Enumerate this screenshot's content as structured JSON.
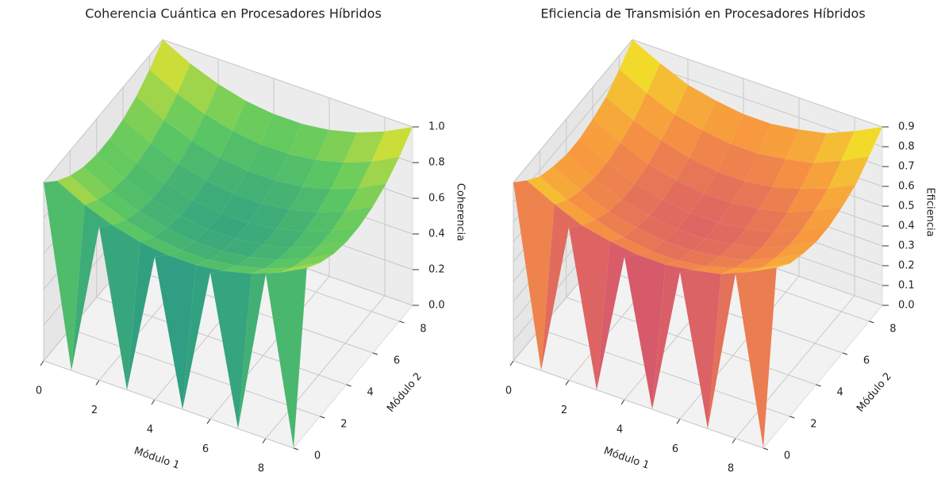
{
  "chart_data": [
    {
      "type": "surface",
      "title": "Coherencia Cuántica en Procesadores Híbridos",
      "x_label": "Módulo 1",
      "y_label": "Módulo 2",
      "z_label": "Coherencia",
      "colormap": "viridis",
      "x": [
        0,
        1,
        2,
        3,
        4,
        5,
        6,
        7,
        8,
        9
      ],
      "y": [
        0,
        1,
        2,
        3,
        4,
        5,
        6,
        7,
        8,
        9
      ],
      "z": [
        [
          1.0,
          0,
          0.86,
          0,
          0.8,
          0,
          0.82,
          0,
          0.92,
          0
        ],
        [
          0.92,
          0.84,
          0.78,
          0.74,
          0.72,
          0.72,
          0.74,
          0.78,
          0.84,
          0.92
        ],
        [
          0.86,
          0.78,
          0.72,
          0.68,
          0.66,
          0.66,
          0.68,
          0.72,
          0.78,
          0.86
        ],
        [
          0.82,
          0.74,
          0.68,
          0.64,
          0.62,
          0.62,
          0.64,
          0.68,
          0.74,
          0.82
        ],
        [
          0.8,
          0.72,
          0.66,
          0.62,
          0.6,
          0.6,
          0.62,
          0.66,
          0.72,
          0.8
        ],
        [
          0.8,
          0.72,
          0.66,
          0.62,
          0.6,
          0.6,
          0.62,
          0.66,
          0.72,
          0.8
        ],
        [
          0.82,
          0.74,
          0.68,
          0.64,
          0.62,
          0.62,
          0.64,
          0.68,
          0.74,
          0.82
        ],
        [
          0.86,
          0.78,
          0.72,
          0.68,
          0.66,
          0.66,
          0.68,
          0.72,
          0.78,
          0.86
        ],
        [
          0.92,
          0.84,
          0.78,
          0.74,
          0.72,
          0.72,
          0.74,
          0.78,
          0.84,
          0.92
        ],
        [
          1.0,
          0.92,
          0.86,
          0.82,
          0.8,
          0.8,
          0.82,
          0.86,
          0.92,
          1.0
        ]
      ],
      "xlim": [
        0,
        9
      ],
      "ylim": [
        0,
        9
      ],
      "zlim": [
        0,
        1
      ],
      "xticks": [
        0,
        2,
        4,
        6,
        8
      ],
      "yticks": [
        0,
        2,
        4,
        6,
        8
      ],
      "zticks": [
        {
          "value": 0,
          "label": "0.0"
        },
        {
          "value": 0.2,
          "label": "0.2"
        },
        {
          "value": 0.4,
          "label": "0.4"
        },
        {
          "value": 0.6,
          "label": "0.6"
        },
        {
          "value": 0.8,
          "label": "0.8"
        },
        {
          "value": 1,
          "label": "1.0"
        }
      ]
    },
    {
      "type": "surface",
      "title": "Eficiencia de Transmisión en Procesadores Híbridos",
      "x_label": "Módulo 1",
      "y_label": "Módulo 2",
      "z_label": "Eficiencia",
      "colormap": "plasma",
      "x": [
        0,
        1,
        2,
        3,
        4,
        5,
        6,
        7,
        8,
        9
      ],
      "y": [
        0,
        1,
        2,
        3,
        4,
        5,
        6,
        7,
        8,
        9
      ],
      "z": [
        [
          0.9,
          0,
          0.77,
          0,
          0.72,
          0,
          0.74,
          0,
          0.83,
          0
        ],
        [
          0.83,
          0.76,
          0.7,
          0.67,
          0.65,
          0.65,
          0.67,
          0.7,
          0.76,
          0.83
        ],
        [
          0.77,
          0.7,
          0.65,
          0.61,
          0.59,
          0.59,
          0.61,
          0.65,
          0.7,
          0.77
        ],
        [
          0.74,
          0.67,
          0.61,
          0.58,
          0.56,
          0.56,
          0.58,
          0.61,
          0.67,
          0.74
        ],
        [
          0.72,
          0.65,
          0.59,
          0.56,
          0.54,
          0.54,
          0.56,
          0.59,
          0.65,
          0.72
        ],
        [
          0.72,
          0.65,
          0.59,
          0.56,
          0.54,
          0.54,
          0.56,
          0.59,
          0.65,
          0.72
        ],
        [
          0.74,
          0.67,
          0.61,
          0.58,
          0.56,
          0.56,
          0.58,
          0.61,
          0.67,
          0.74
        ],
        [
          0.77,
          0.7,
          0.65,
          0.61,
          0.59,
          0.59,
          0.61,
          0.65,
          0.7,
          0.77
        ],
        [
          0.83,
          0.76,
          0.7,
          0.67,
          0.65,
          0.65,
          0.67,
          0.7,
          0.76,
          0.83
        ],
        [
          0.9,
          0.83,
          0.77,
          0.74,
          0.72,
          0.72,
          0.74,
          0.77,
          0.83,
          0.9
        ]
      ],
      "xlim": [
        0,
        9
      ],
      "ylim": [
        0,
        9
      ],
      "zlim": [
        0,
        0.9
      ],
      "xticks": [
        0,
        2,
        4,
        6,
        8
      ],
      "yticks": [
        0,
        2,
        4,
        6,
        8
      ],
      "zticks": [
        {
          "value": 0,
          "label": "0.0"
        },
        {
          "value": 0.1,
          "label": "0.1"
        },
        {
          "value": 0.2,
          "label": "0.2"
        },
        {
          "value": 0.3,
          "label": "0.3"
        },
        {
          "value": 0.4,
          "label": "0.4"
        },
        {
          "value": 0.5,
          "label": "0.5"
        },
        {
          "value": 0.6,
          "label": "0.6"
        },
        {
          "value": 0.7,
          "label": "0.7"
        },
        {
          "value": 0.8,
          "label": "0.8"
        },
        {
          "value": 0.9,
          "label": "0.9"
        }
      ]
    }
  ]
}
